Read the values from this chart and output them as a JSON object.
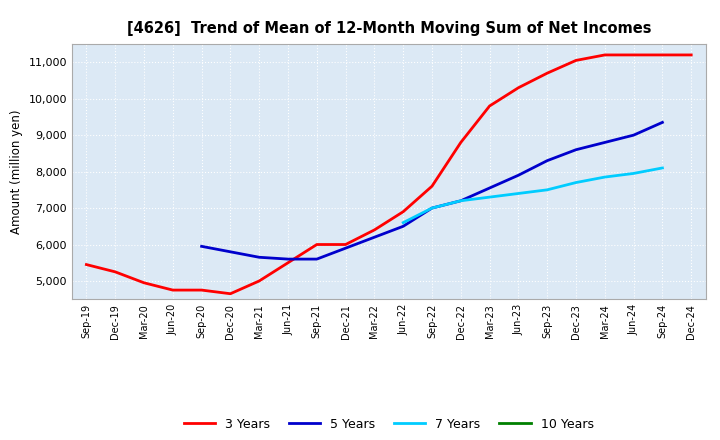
{
  "title": "[4626]  Trend of Mean of 12-Month Moving Sum of Net Incomes",
  "ylabel": "Amount (million yen)",
  "background_color": "#ffffff",
  "plot_bg_color": "#dce9f5",
  "grid_color": "#ffffff",
  "ylim": [
    4500,
    11500
  ],
  "yticks": [
    5000,
    6000,
    7000,
    8000,
    9000,
    10000,
    11000
  ],
  "x_labels": [
    "Sep-19",
    "Dec-19",
    "Mar-20",
    "Jun-20",
    "Sep-20",
    "Dec-20",
    "Mar-21",
    "Jun-21",
    "Sep-21",
    "Dec-21",
    "Mar-22",
    "Jun-22",
    "Sep-22",
    "Dec-22",
    "Mar-23",
    "Jun-23",
    "Sep-23",
    "Dec-23",
    "Mar-24",
    "Jun-24",
    "Sep-24",
    "Dec-24"
  ],
  "series": {
    "3 Years": {
      "color": "#ff0000",
      "data": [
        5450,
        5250,
        4950,
        4750,
        4750,
        4650,
        5000,
        5500,
        6000,
        6000,
        6400,
        6900,
        7600,
        8800,
        9800,
        10300,
        10700,
        11050,
        11200,
        11200,
        11200,
        11200
      ]
    },
    "5 Years": {
      "color": "#0000cc",
      "data": [
        null,
        null,
        null,
        null,
        5950,
        5800,
        5650,
        5600,
        5600,
        5900,
        6200,
        6500,
        7000,
        7200,
        7550,
        7900,
        8300,
        8600,
        8800,
        9000,
        9350,
        null
      ]
    },
    "7 Years": {
      "color": "#00ccff",
      "data": [
        null,
        null,
        null,
        null,
        null,
        null,
        null,
        null,
        null,
        null,
        null,
        6600,
        7000,
        7200,
        7300,
        7400,
        7500,
        7700,
        7850,
        7950,
        8100,
        null
      ]
    },
    "10 Years": {
      "color": "#008000",
      "data": [
        null,
        null,
        null,
        null,
        null,
        null,
        null,
        null,
        null,
        null,
        null,
        null,
        null,
        null,
        null,
        null,
        null,
        null,
        null,
        null,
        null,
        null
      ]
    }
  },
  "legend_labels": [
    "3 Years",
    "5 Years",
    "7 Years",
    "10 Years"
  ],
  "legend_colors": [
    "#ff0000",
    "#0000cc",
    "#00ccff",
    "#008000"
  ]
}
